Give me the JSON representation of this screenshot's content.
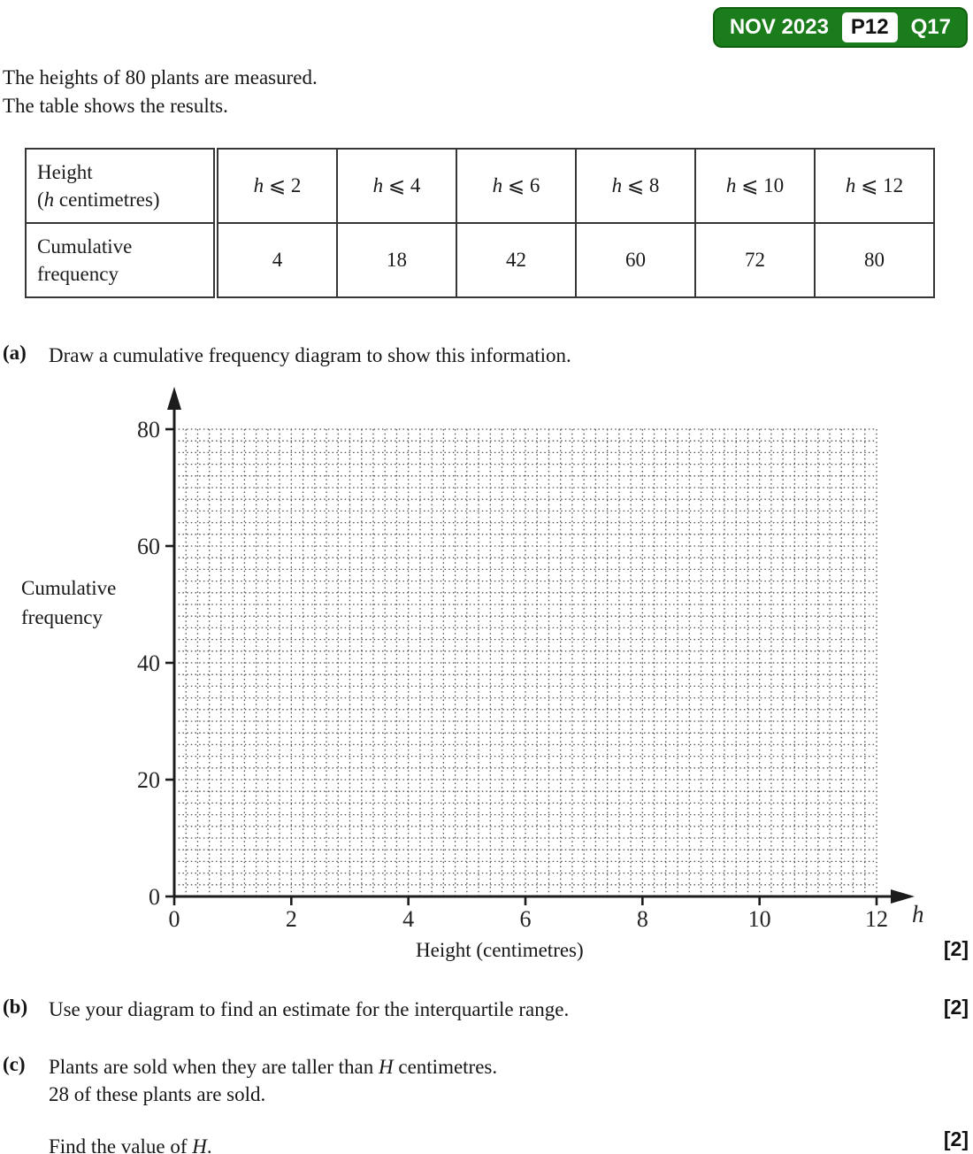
{
  "badge": {
    "session": "NOV 2023",
    "paper": "P12",
    "question": "Q17",
    "colors": {
      "badge_green": "#1b7c1b",
      "badge_text": "#ffffff",
      "paper_box_bg": "#ffffff",
      "paper_box_text": "#111111"
    }
  },
  "intro": {
    "line1": "The heights of 80 plants are measured.",
    "line2": "The table shows the results."
  },
  "table": {
    "row1_header_line1": "Height",
    "row1_header_line2": "(*h* centimetres)",
    "row2_header_line1": "Cumulative",
    "row2_header_line2": "frequency",
    "columns": [
      "*h* ⩽ 2",
      "*h* ⩽ 4",
      "*h* ⩽ 6",
      "*h* ⩽ 8",
      "*h* ⩽ 10",
      "*h* ⩽ 12"
    ],
    "values": [
      4,
      18,
      42,
      60,
      72,
      80
    ]
  },
  "parts": {
    "a": {
      "label": "(a)",
      "text": "Draw a cumulative frequency diagram to show this information.",
      "marks": "[2]"
    },
    "b": {
      "label": "(b)",
      "text": "Use your diagram to find an estimate for the interquartile range.",
      "marks": "[2]"
    },
    "c": {
      "label": "(c)",
      "line1": "Plants are sold when they are taller than *H* centimetres.",
      "line2": "28 of these plants are sold.",
      "line3": "Find the value of *H*.",
      "marks": "[2]"
    }
  },
  "chart_data": {
    "type": "line",
    "title": "",
    "xlabel": "Height (centimetres)",
    "x_axis_variable": "h",
    "ylabel": "Cumulative frequency",
    "ylabel_lines": [
      "Cumulative",
      "frequency"
    ],
    "xlim": [
      0,
      12
    ],
    "ylim": [
      0,
      80
    ],
    "x_ticks": [
      0,
      2,
      4,
      6,
      8,
      10,
      12
    ],
    "y_ticks": [
      0,
      20,
      40,
      60,
      80
    ],
    "x_minor_per_major": 10,
    "y_minor_per_major": 10,
    "grid": "fine dotted graph paper, on",
    "grid_color": "#4d4d4d",
    "legend": "none",
    "series": [],
    "note": "Axes and blank dotted grid only — the cumulative frequency curve is to be drawn by the student from the table values"
  }
}
